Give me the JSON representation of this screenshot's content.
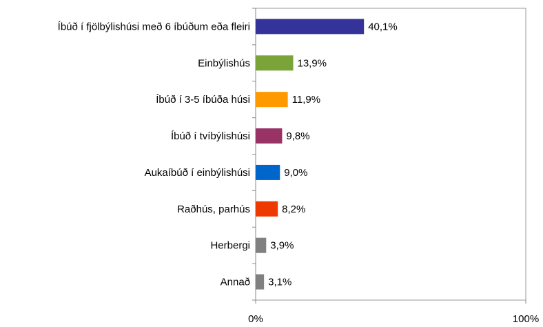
{
  "chart_data": {
    "type": "hbar",
    "categories": [
      "Íbúð í fjölbýlishúsi með 6 íbúðum eða fleiri",
      "Einbýlishús",
      "Íbúð í 3-5 íbúða húsi",
      "Íbúð í tvíbýlishúsi",
      "Aukaíbúð í einbýlishúsi",
      "Raðhús, parhús",
      "Herbergi",
      "Annað"
    ],
    "values": [
      40.1,
      13.9,
      11.9,
      9.8,
      9.0,
      8.2,
      3.9,
      3.1
    ],
    "value_labels": [
      "40,1%",
      "13,9%",
      "11,9%",
      "9,8%",
      "9,0%",
      "8,2%",
      "3,9%",
      "3,1%"
    ],
    "colors": [
      "#333399",
      "#7aa33a",
      "#ff9900",
      "#993366",
      "#0066cc",
      "#ee3a00",
      "#808080",
      "#808080"
    ],
    "xlim": [
      0,
      100
    ],
    "xticks": [
      {
        "value": 0,
        "label": "0%"
      },
      {
        "value": 100,
        "label": "100%"
      }
    ],
    "grid": false
  }
}
